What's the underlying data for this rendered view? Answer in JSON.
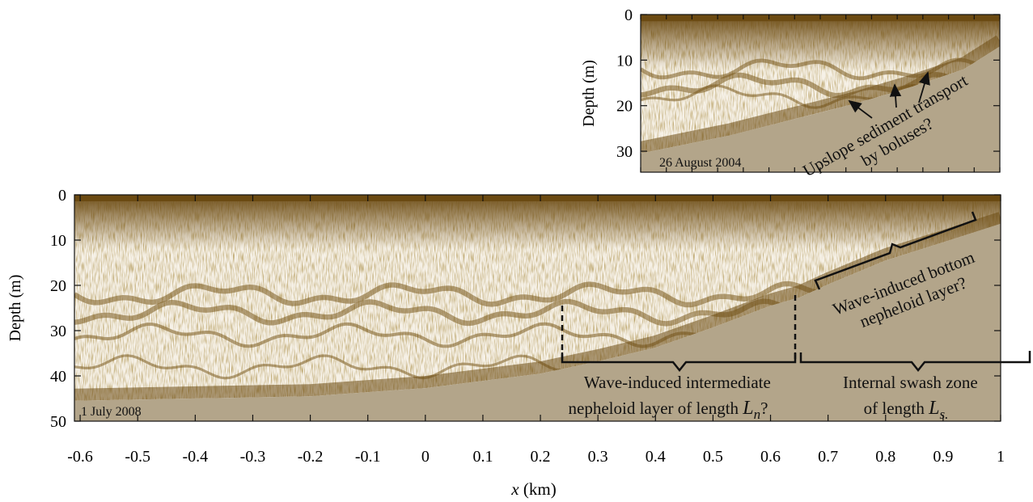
{
  "chart_data": [
    {
      "type": "echogram",
      "date": "26 August 2004",
      "ylabel": "Depth (m)",
      "xlim": [
        0,
        1
      ],
      "ylim": [
        0,
        34.6
      ],
      "yticks": [
        0,
        10,
        20,
        30
      ],
      "surface_depth": 1.5,
      "seabed": {
        "x": [
          0,
          0.25,
          0.5,
          0.6,
          0.75,
          0.9,
          1
        ],
        "depth": [
          30.5,
          26.5,
          21.5,
          19.5,
          16,
          12,
          7
        ]
      },
      "annotations": [
        {
          "lines": [
            [
              "Upslope sediment transport"
            ],
            [
              "by boluses?"
            ]
          ]
        }
      ]
    },
    {
      "type": "echogram",
      "date": "1 July 2008",
      "ylabel": "Depth (m)",
      "xlabel": [
        "x",
        " (km)"
      ],
      "xlim": [
        -0.61,
        1
      ],
      "xticks": [
        -0.6,
        -0.5,
        -0.4,
        -0.3,
        -0.2,
        -0.1,
        0,
        0.1,
        0.2,
        0.3,
        0.4,
        0.5,
        0.6,
        0.7,
        0.8,
        0.9,
        1
      ],
      "ylim": [
        0,
        50
      ],
      "yticks": [
        0,
        10,
        20,
        30,
        40,
        50
      ],
      "surface_depth": 1.5,
      "seabed": {
        "x": [
          -0.61,
          -0.2,
          0,
          0.2,
          0.3,
          0.4,
          0.5,
          0.6,
          0.65,
          0.7,
          0.8,
          0.9,
          1
        ],
        "depth": [
          45.5,
          44.5,
          42.7,
          39.5,
          36.8,
          33.75,
          29.3,
          24.5,
          22.7,
          19.8,
          14.5,
          10.5,
          6.4
        ]
      },
      "annotations": [
        {
          "lines": [
            [
              "Wave-induced intermediate"
            ],
            [
              "nepheloid layer of length ",
              "L",
              "n",
              "?"
            ]
          ]
        },
        {
          "lines": [
            [
              "Internal swash zone"
            ],
            [
              "of length ",
              "L",
              "s.",
              ""
            ]
          ]
        },
        {
          "lines": [
            [
              "Wave-induced bottom"
            ],
            [
              "nepheloid layer?"
            ]
          ]
        }
      ]
    }
  ]
}
